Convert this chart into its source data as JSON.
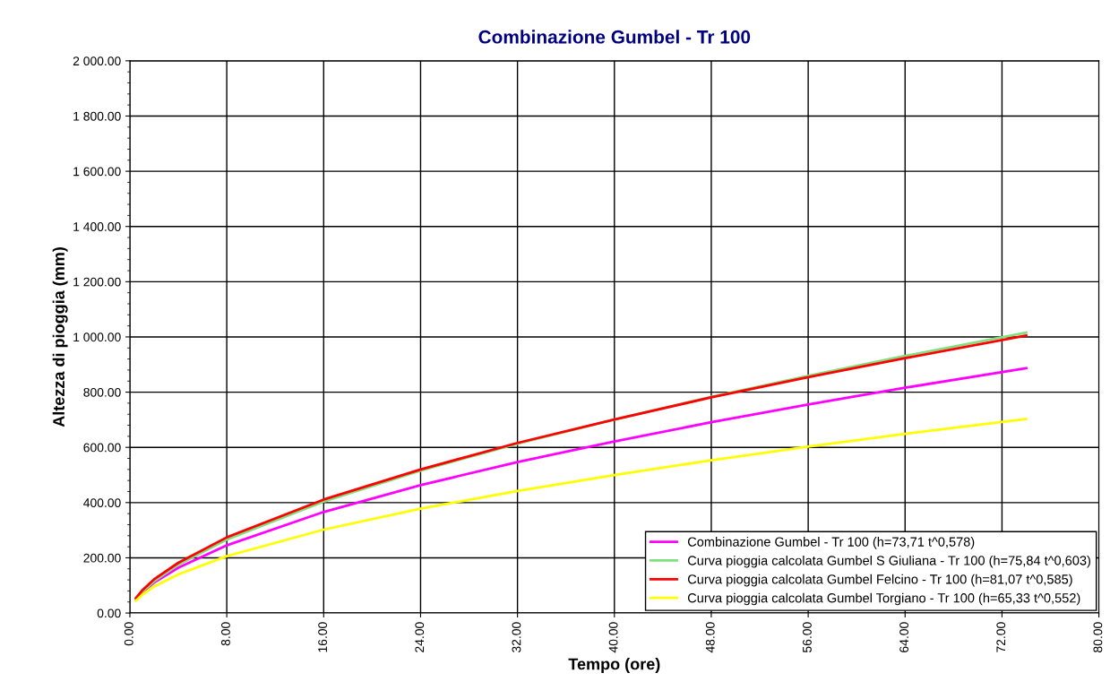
{
  "chart_data": {
    "type": "line",
    "title": "Combinazione Gumbel - Tr 100",
    "xlabel": "Tempo (ore)",
    "ylabel": "Altezza di pioggia (mm)",
    "x": [
      0.5,
      1,
      2,
      4,
      8,
      16,
      24,
      32,
      40,
      48,
      56,
      64,
      74
    ],
    "series": [
      {
        "name": "Combinazione Gumbel - Tr 100 (h=73,71 t^0,578)",
        "color": "#ff00ff",
        "values": [
          49,
          74,
          110,
          164,
          245,
          366,
          463,
          547,
          621,
          691,
          755,
          816,
          887
        ]
      },
      {
        "name": "Curva pioggia calcolata Gumbel S Giuliana - Tr 100 (h=75,84 t^0,603)",
        "color": "#80e080",
        "values": [
          50,
          76,
          115,
          175,
          266,
          404,
          516,
          613,
          701,
          783,
          859,
          931,
          1016
        ]
      },
      {
        "name": "Curva pioggia calcolata Gumbel Felcino - Tr 100 (h=81,07 t^0,585)",
        "color": "#ff0000",
        "values": [
          54,
          81,
          122,
          182,
          274,
          411,
          520,
          616,
          701,
          781,
          854,
          923,
          1005
        ]
      },
      {
        "name": "Curva pioggia calcolata Gumbel Torgiano - Tr 100 (h=65,33 t^0,552)",
        "color": "#ffff00",
        "values": [
          45,
          65,
          96,
          140,
          206,
          302,
          378,
          442,
          500,
          553,
          603,
          649,
          703
        ]
      }
    ],
    "xlim": [
      0,
      80
    ],
    "xticks": [
      {
        "value": 0,
        "label": "0.00"
      },
      {
        "value": 8,
        "label": "8.00"
      },
      {
        "value": 16,
        "label": "16.00"
      },
      {
        "value": 24,
        "label": "24.00"
      },
      {
        "value": 32,
        "label": "32.00"
      },
      {
        "value": 40,
        "label": "40.00"
      },
      {
        "value": 48,
        "label": "48.00"
      },
      {
        "value": 56,
        "label": "56.00"
      },
      {
        "value": 64,
        "label": "64.00"
      },
      {
        "value": 72,
        "label": "72.00"
      },
      {
        "value": 80,
        "label": "80.00"
      }
    ],
    "ylim": [
      0,
      2000
    ],
    "yticks": [
      {
        "value": 0,
        "label": "0.00"
      },
      {
        "value": 200,
        "label": "200.00"
      },
      {
        "value": 400,
        "label": "400.00"
      },
      {
        "value": 600,
        "label": "600.00"
      },
      {
        "value": 800,
        "label": "800.00"
      },
      {
        "value": 1000,
        "label": "1 000.00"
      },
      {
        "value": 1200,
        "label": "1 200.00"
      },
      {
        "value": 1400,
        "label": "1 400.00"
      },
      {
        "value": 1600,
        "label": "1 600.00"
      },
      {
        "value": 1800,
        "label": "1 800.00"
      },
      {
        "value": 2000,
        "label": "2 000.00"
      }
    ],
    "grid": true,
    "legend": "bottom right",
    "marker": "none",
    "line_style": "solid"
  }
}
